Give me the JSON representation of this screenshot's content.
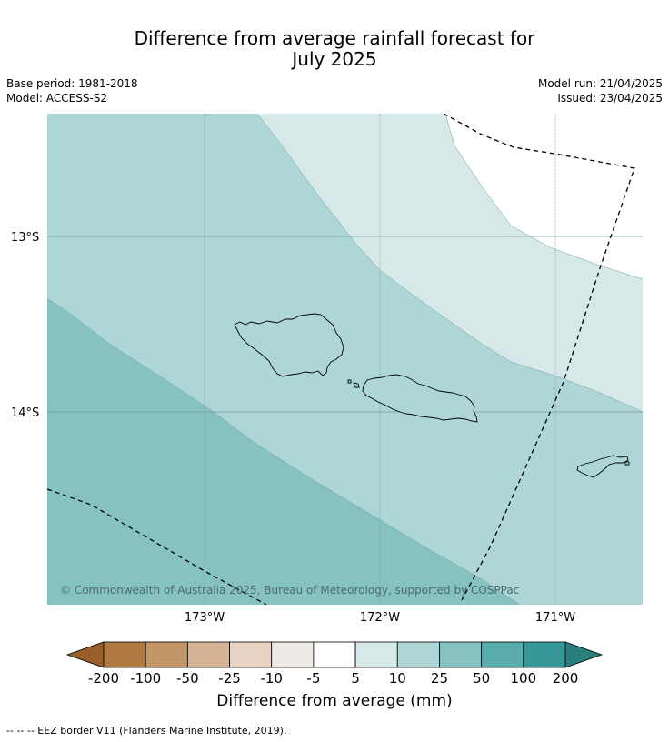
{
  "title_line1": "Difference from average rainfall forecast for",
  "title_line2": "July 2025",
  "base_period": "Base period: 1981-2018",
  "model": "Model: ACCESS-S2",
  "model_run": "Model run: 21/04/2025",
  "issued": "Issued: 23/04/2025",
  "lat_labels": [
    "13°S",
    "14°S"
  ],
  "lon_labels": [
    "173°W",
    "172°W",
    "171°W"
  ],
  "copyright": "© Commonwealth of Australia 2025, Bureau of Meteorology, supported by COSPPac",
  "legend": {
    "title": "Difference from average (mm)",
    "ticks": [
      "-200",
      "-100",
      "-50",
      "-25",
      "-10",
      "-5",
      "5",
      "10",
      "25",
      "50",
      "100",
      "200"
    ],
    "colors": [
      "#9a5f28",
      "#b07a42",
      "#c39668",
      "#d6b394",
      "#e8d3c2",
      "#eeebe7",
      "#ffffff",
      "#d6e9e8",
      "#aed6d6",
      "#86c2c1",
      "#5aadab",
      "#359896",
      "#2a7e7c"
    ]
  },
  "eez_note": "--  --  -- EEZ border V11 (Flanders Marine Institute, 2019)."
}
